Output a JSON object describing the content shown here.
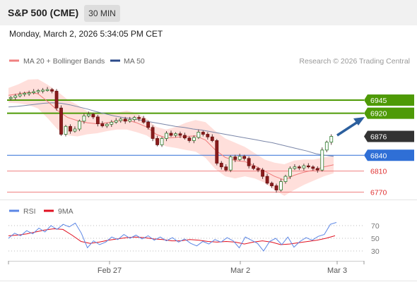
{
  "header": {
    "title": "S&P 500 (CME)",
    "timeframe": "30 MIN"
  },
  "datetime": "Monday, March 2, 2026 5:34:05 PM CET",
  "legend": {
    "bollinger": "MA 20 + Bollinger Bands",
    "ma50": "MA 50"
  },
  "credit": "Research © 2026 Trading Central",
  "rsi_legend": {
    "rsi": "RSI",
    "ma": "9MA"
  },
  "colors": {
    "green": "#4e9a06",
    "blue": "#2f6fd6",
    "red": "#f08080",
    "dark": "#333333",
    "arrow": "#2c5f9e",
    "band": "#ffd4cf",
    "ma50": "#7a86a8"
  },
  "chart_data": [
    {
      "type": "candlestick",
      "x_axis_labels": [
        "Feb 27",
        "Mar 2",
        "Mar 3"
      ],
      "ylim": [
        6760,
        6965
      ],
      "current_price": 6876,
      "levels": [
        {
          "value": 6945,
          "label": "6945",
          "kind": "resistance"
        },
        {
          "value": 6920,
          "label": "6920",
          "kind": "resistance"
        },
        {
          "value": 6876,
          "label": "6876",
          "kind": "current"
        },
        {
          "value": 6840,
          "label": "6840",
          "kind": "pivot"
        },
        {
          "value": 6810,
          "label": "6810",
          "kind": "support"
        },
        {
          "value": 6770,
          "label": "6770",
          "kind": "support"
        }
      ],
      "price_path": [
        6950,
        6953,
        6956,
        6958,
        6959,
        6961,
        6963,
        6964,
        6965,
        6962,
        6930,
        6880,
        6895,
        6886,
        6890,
        6905,
        6915,
        6918,
        6913,
        6900,
        6896,
        6899,
        6903,
        6906,
        6909,
        6905,
        6908,
        6912,
        6910,
        6903,
        6893,
        6872,
        6860,
        6872,
        6882,
        6878,
        6881,
        6878,
        6873,
        6868,
        6874,
        6884,
        6880,
        6875,
        6868,
        6825,
        6818,
        6812,
        6837,
        6832,
        6838,
        6834,
        6820,
        6815,
        6812,
        6800,
        6787,
        6782,
        6774,
        6790,
        6800,
        6815,
        6818,
        6816,
        6820,
        6818,
        6815,
        6812,
        6850,
        6865,
        6876
      ],
      "series": [
        {
          "name": "MA 50",
          "values": [
            6932,
            6933,
            6935,
            6937,
            6939,
            6940,
            6939,
            6936,
            6932,
            6928,
            6923,
            6919,
            6915,
            6912,
            6910,
            6907,
            6904,
            6901,
            6898,
            6895,
            6893,
            6890,
            6888,
            6885,
            6882,
            6879,
            6876,
            6873,
            6870,
            6867,
            6864,
            6860,
            6856,
            6852,
            6848,
            6843,
            6840,
            6838
          ]
        },
        {
          "name": "MA 20",
          "values": [
            6954,
            6957,
            6960,
            6957,
            6942,
            6925,
            6912,
            6906,
            6902,
            6900,
            6902,
            6905,
            6907,
            6902,
            6894,
            6880,
            6873,
            6874,
            6876,
            6877,
            6869,
            6850,
            6836,
            6830,
            6828,
            6820,
            6810,
            6800,
            6793,
            6802,
            6808,
            6812,
            6818,
            6822
          ]
        }
      ]
    },
    {
      "type": "line",
      "name": "RSI",
      "ylim": [
        15,
        80
      ],
      "y_ticks": [
        70,
        50,
        30
      ],
      "series": [
        {
          "name": "RSI",
          "values": [
            50,
            58,
            54,
            62,
            57,
            66,
            60,
            70,
            64,
            72,
            68,
            74,
            58,
            35,
            46,
            40,
            44,
            52,
            48,
            56,
            50,
            55,
            49,
            54,
            47,
            52,
            46,
            51,
            44,
            49,
            42,
            38,
            45,
            41,
            48,
            44,
            51,
            46,
            35,
            52,
            47,
            42,
            30,
            45,
            50,
            40,
            52,
            36,
            45,
            51,
            47,
            53,
            56,
            72,
            75
          ]
        },
        {
          "name": "9MA",
          "values": [
            54,
            55,
            57,
            60,
            63,
            65,
            64,
            55,
            45,
            42,
            44,
            47,
            49,
            51,
            52,
            51,
            49,
            48,
            46,
            46,
            48,
            47,
            45,
            44,
            45,
            44,
            41,
            44,
            46,
            44,
            40,
            41,
            43,
            45,
            47,
            50,
            54
          ]
        }
      ]
    }
  ]
}
